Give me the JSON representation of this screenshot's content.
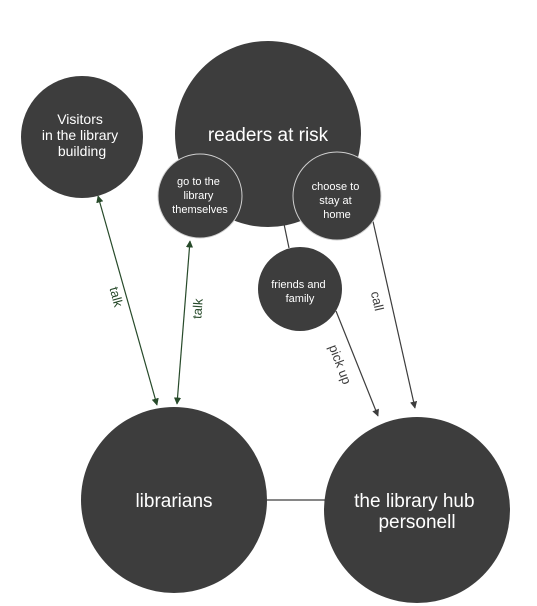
{
  "colors": {
    "node_fill": "#3d3d3d",
    "node_stroke_light": "#cfcfcf",
    "edge_green": "#274a2a",
    "edge_gray": "#3d3d3d"
  },
  "nodes": {
    "visitors": {
      "lines": [
        "Visitors",
        "in the library",
        "building"
      ]
    },
    "readers_at_risk": {
      "lines": [
        "readers at risk"
      ]
    },
    "go_to_library": {
      "lines": [
        "go to the",
        "library",
        "themselves"
      ]
    },
    "choose_stay_home": {
      "lines": [
        "choose to",
        "stay at",
        "home"
      ]
    },
    "friends_family": {
      "lines": [
        "friends and",
        "family"
      ]
    },
    "librarians": {
      "lines": [
        "librarians"
      ]
    },
    "library_hub": {
      "lines": [
        "the library hub",
        "personell"
      ]
    }
  },
  "edges": {
    "talk_visitors": "talk",
    "talk_themselves": "talk",
    "pick_up": "pick up",
    "call": "call"
  }
}
